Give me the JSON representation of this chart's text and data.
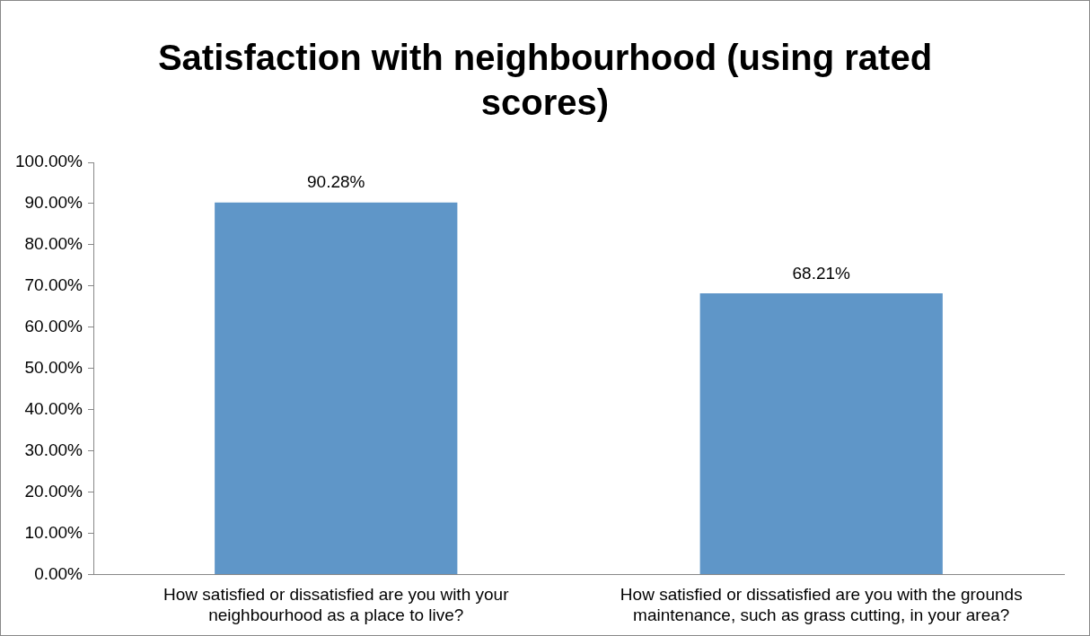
{
  "chart_data": {
    "type": "bar",
    "title": "Satisfaction with neighbourhood (using rated scores)",
    "categories": [
      "How satisfied or dissatisfied are you with your neighbourhood as a place to live?",
      "How satisfied or dissatisfied are you with the grounds maintenance, such as grass cutting, in your area?"
    ],
    "values": [
      90.28,
      68.21
    ],
    "color": "#5f96c8",
    "value_labels": [
      "90.28%",
      "68.21%"
    ],
    "ylim": [
      0,
      100
    ],
    "yticks": [
      {
        "value": 0,
        "label": "0.00%"
      },
      {
        "value": 10,
        "label": "10.00%"
      },
      {
        "value": 20,
        "label": "20.00%"
      },
      {
        "value": 30,
        "label": "30.00%"
      },
      {
        "value": 40,
        "label": "40.00%"
      },
      {
        "value": 50,
        "label": "50.00%"
      },
      {
        "value": 60,
        "label": "60.00%"
      },
      {
        "value": 70,
        "label": "70.00%"
      },
      {
        "value": 80,
        "label": "80.00%"
      },
      {
        "value": 90,
        "label": "90.00%"
      },
      {
        "value": 100,
        "label": "100.00%"
      }
    ],
    "grid": false,
    "legend": false
  }
}
